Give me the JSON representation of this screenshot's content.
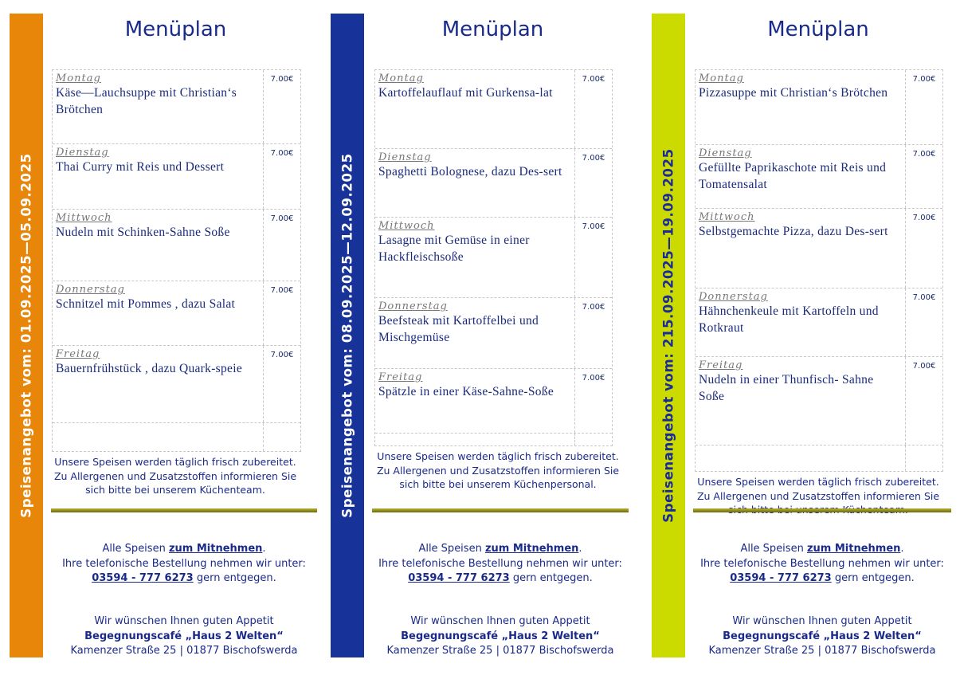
{
  "colors": {
    "orange": "#e8860a",
    "blue": "#17339a",
    "lime": "#cbdb00",
    "text": "#1a2a8a"
  },
  "panels": [
    {
      "title": "Menüplan",
      "sidebar": "Speisenangebot vom:  01.09.2025—05.09.2025",
      "bar_color": "#e8860a",
      "bar_text_color": "#ffffff",
      "days": [
        {
          "day": "Montag",
          "dish": "Käse—Lauchsuppe mit Christian‘s Brötchen",
          "price": "7.00€"
        },
        {
          "day": "Dienstag",
          "dish": "Thai Curry mit Reis und Dessert",
          "price": "7.00€"
        },
        {
          "day": "Mittwoch",
          "dish": "Nudeln mit Schinken-Sahne Soße",
          "price": "7.00€"
        },
        {
          "day": "Donnerstag",
          "dish": "Schnitzel mit Pommes , dazu Salat",
          "price": "7.00€"
        },
        {
          "day": "Freitag",
          "dish": "Bauernfrühstück , dazu Quark-speie",
          "price": "7.00€"
        }
      ],
      "note": [
        "Unsere Speisen werden täglich frisch zubereitet.",
        "Zu Allergenen und Zusatzstoffen informieren Sie",
        "sich bitte bei unserem Küchenteam."
      ]
    },
    {
      "title": "Menüplan",
      "sidebar": "Speisenangebot vom:  08.09.2025—12.09.2025",
      "bar_color": "#17339a",
      "bar_text_color": "#ffffff",
      "days": [
        {
          "day": "Montag",
          "dish": "Kartoffelauflauf mit Gurkensa-lat",
          "price": "7.00€"
        },
        {
          "day": "Dienstag",
          "dish": "Spaghetti Bolognese, dazu Des-sert",
          "price": "7.00€"
        },
        {
          "day": "Mittwoch",
          "dish": "Lasagne mit Gemüse in einer Hackfleischsoße",
          "price": "7.00€"
        },
        {
          "day": "Donnerstag",
          "dish": "Beefsteak mit Kartoffelbei und Mischgemüse",
          "price": "7.00€"
        },
        {
          "day": "Freitag",
          "dish": "Spätzle in einer Käse-Sahne-Soße",
          "price": "7.00€"
        }
      ],
      "note": [
        "Unsere Speisen werden täglich frisch zubereitet.",
        "Zu Allergenen und Zusatzstoffen informieren Sie",
        "sich bitte bei unserem Küchenpersonal."
      ]
    },
    {
      "title": "Menüplan",
      "sidebar": "Speisenangebot vom:  215.09.2025—19.09.2025",
      "bar_color": "#cbdb00",
      "bar_text_color": "#1a2a9a",
      "days": [
        {
          "day": "Montag",
          "dish": "Pizzasuppe mit Christian‘s Brötchen",
          "price": "7.00€"
        },
        {
          "day": "Dienstag",
          "dish": "Gefüllte Paprikaschote mit Reis und Tomatensalat",
          "price": "7.00€"
        },
        {
          "day": "Mittwoch",
          "dish": "Selbstgemachte Pizza, dazu Des-sert",
          "price": "7.00€"
        },
        {
          "day": "Donnerstag",
          "dish": "Hähnchenkeule mit Kartoffeln und Rotkraut",
          "price": "7.00€"
        },
        {
          "day": "Freitag",
          "dish": "Nudeln in einer Thunfisch- Sahne Soße",
          "price": "7.00€"
        }
      ],
      "note": [
        "Unsere Speisen werden täglich frisch zubereitet.",
        "Zu Allergenen und Zusatzstoffen informieren Sie",
        "sich bitte bei unserem Küchenteam."
      ]
    }
  ],
  "order": {
    "prefix": "Alle Speisen ",
    "takeaway": "zum Mitnehmen",
    "suffix": ".",
    "line2": "Ihre telefonische Bestellung nehmen wir unter:",
    "phone": "03594 - 777 6273",
    "line3_suffix": " gern entgegen."
  },
  "footer": {
    "greeting": "Wir wünschen Ihnen guten Appetit",
    "cafe": "Begegnungscafé „Haus 2 Welten“",
    "address": "Kamenzer Straße 25 | 01877 Bischofswerda"
  }
}
